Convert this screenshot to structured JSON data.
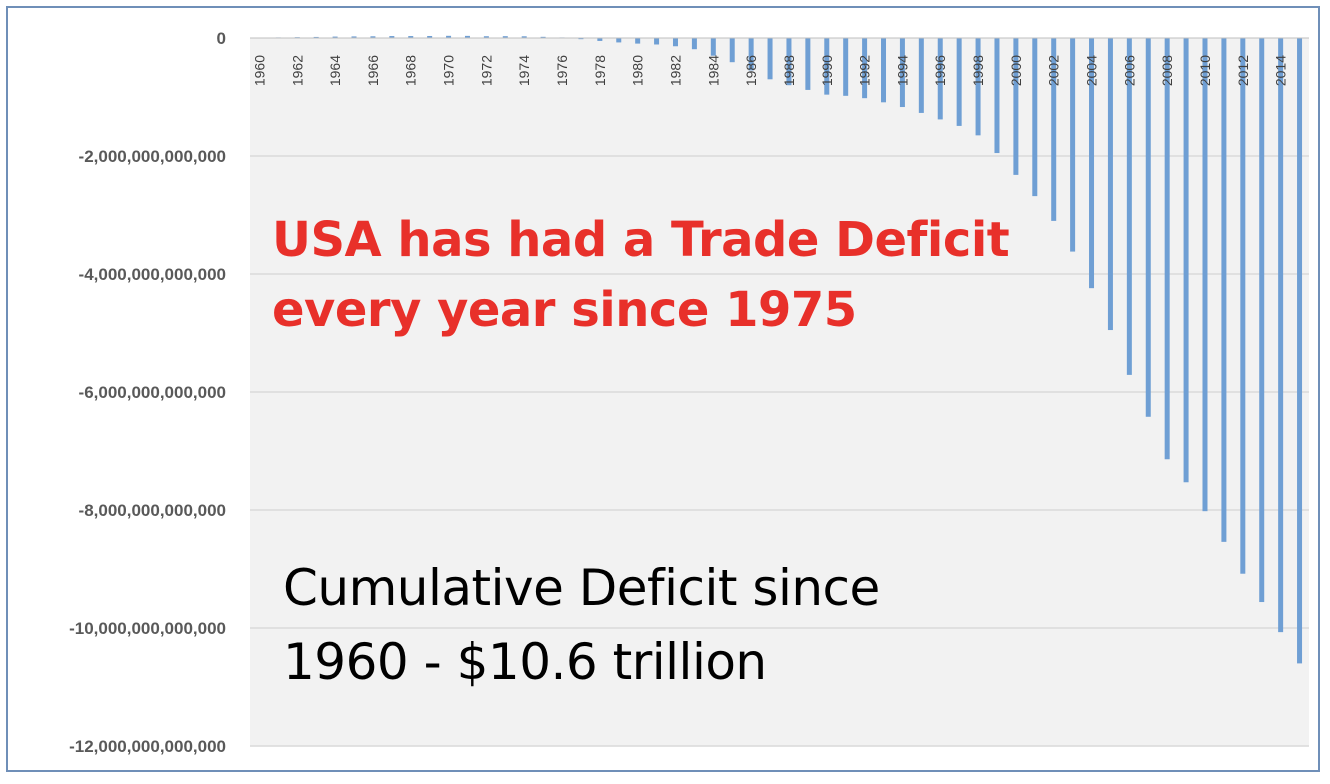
{
  "chart_data": {
    "type": "bar",
    "title": "",
    "xlabel": "",
    "ylabel": "",
    "categories": [
      "1960",
      "1961",
      "1962",
      "1963",
      "1964",
      "1965",
      "1966",
      "1967",
      "1968",
      "1969",
      "1970",
      "1971",
      "1972",
      "1973",
      "1974",
      "1975",
      "1976",
      "1977",
      "1978",
      "1979",
      "1980",
      "1981",
      "1982",
      "1983",
      "1984",
      "1985",
      "1986",
      "1987",
      "1988",
      "1989",
      "1990",
      "1991",
      "1992",
      "1993",
      "1994",
      "1995",
      "1996",
      "1997",
      "1998",
      "1999",
      "2000",
      "2001",
      "2002",
      "2003",
      "2004",
      "2005",
      "2006",
      "2007",
      "2008",
      "2009",
      "2010",
      "2011",
      "2012",
      "2013",
      "2014",
      "2015"
    ],
    "x_tick_labels": [
      "1960",
      "1962",
      "1964",
      "1966",
      "1968",
      "1970",
      "1972",
      "1974",
      "1976",
      "1978",
      "1980",
      "1982",
      "1984",
      "1986",
      "1988",
      "1990",
      "1992",
      "1994",
      "1996",
      "1998",
      "2000",
      "2002",
      "2004",
      "2006",
      "2008",
      "2010",
      "2012",
      "2014"
    ],
    "values": [
      5000000000,
      10000000000,
      14000000000,
      18000000000,
      24000000000,
      27000000000,
      29000000000,
      33000000000,
      33000000000,
      34000000000,
      37000000000,
      36000000000,
      30000000000,
      31000000000,
      29000000000,
      20000000000,
      10000000000,
      -20000000000,
      -50000000000,
      -75000000000,
      -95000000000,
      -110000000000,
      -140000000000,
      -190000000000,
      -300000000000,
      -410000000000,
      -550000000000,
      -700000000000,
      -800000000000,
      -880000000000,
      -960000000000,
      -980000000000,
      -1020000000000,
      -1090000000000,
      -1170000000000,
      -1270000000000,
      -1380000000000,
      -1490000000000,
      -1650000000000,
      -1950000000000,
      -2320000000000,
      -2680000000000,
      -3100000000000,
      -3620000000000,
      -4240000000000,
      -4950000000000,
      -5710000000000,
      -6420000000000,
      -7140000000000,
      -7530000000000,
      -8020000000000,
      -8540000000000,
      -9080000000000,
      -9560000000000,
      -10070000000000,
      -10600000000000
    ],
    "y_tick_labels": [
      "0",
      "-2,000,000,000,000",
      "-4,000,000,000,000",
      "-6,000,000,000,000",
      "-8,000,000,000,000",
      "-10,000,000,000,000",
      "-12,000,000,000,000"
    ],
    "ylim": [
      -12000000000000,
      0
    ],
    "y_ticks": [
      0,
      -2000000000000,
      -4000000000000,
      -6000000000000,
      -8000000000000,
      -10000000000000,
      -12000000000000
    ],
    "grid": true,
    "legend": "none",
    "bar_color": "#6f9fd4",
    "plot_background": "#f2f2f2",
    "gridline_color": "#d9d9d9",
    "annotations": [
      {
        "lines": [
          "USA has had a Trade Deficit",
          "every year since 1975"
        ],
        "color": "#e8302a"
      },
      {
        "lines": [
          "Cumulative Deficit since",
          "1960 - $10.6 trillion"
        ],
        "color": "#000000"
      }
    ]
  }
}
